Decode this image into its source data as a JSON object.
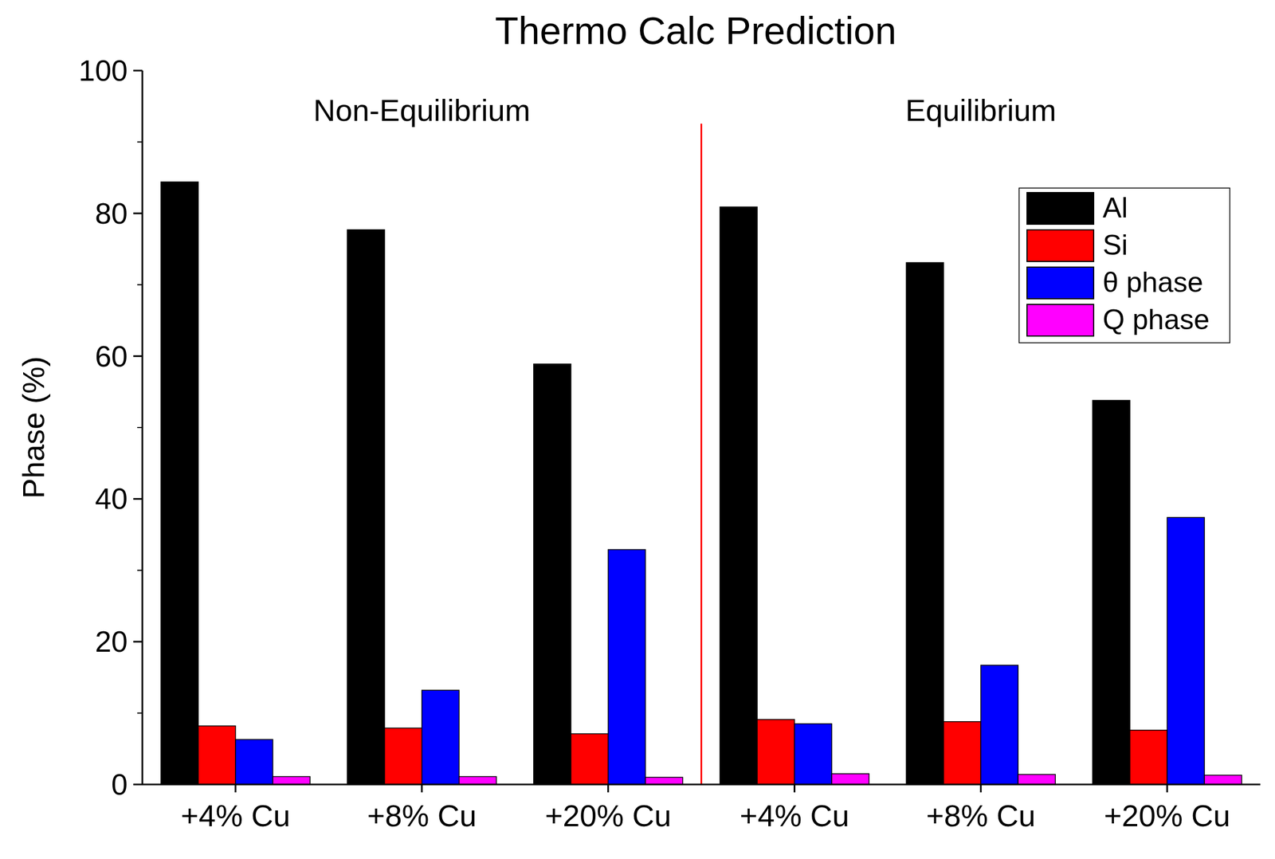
{
  "chart_data": {
    "type": "bar",
    "title": "Thermo Calc Prediction",
    "y_label": "Phase (%)",
    "annotations": [
      "Non-Equilibrium",
      "Equilibrium"
    ],
    "categories": [
      "+4% Cu",
      "+8% Cu",
      "+20% Cu",
      "+4% Cu",
      "+8% Cu",
      "+20% Cu"
    ],
    "series": [
      {
        "name": "Al",
        "color": "#000000",
        "values": [
          84.4,
          77.7,
          58.9,
          80.9,
          73.1,
          53.8
        ]
      },
      {
        "name": "Si",
        "color": "#ff0000",
        "values": [
          8.2,
          7.9,
          7.1,
          9.1,
          8.8,
          7.6
        ]
      },
      {
        "name": "θ phase",
        "color": "#0000ff",
        "values": [
          6.3,
          13.2,
          32.9,
          8.5,
          16.7,
          37.4
        ]
      },
      {
        "name": "Q phase",
        "color": "#ff00ff",
        "values": [
          1.1,
          1.1,
          1.0,
          1.5,
          1.4,
          1.3
        ]
      }
    ],
    "ylim": [
      0,
      100
    ],
    "yticks": [
      0,
      20,
      40,
      60,
      80,
      100
    ],
    "grid": false,
    "legend": "upper right"
  }
}
